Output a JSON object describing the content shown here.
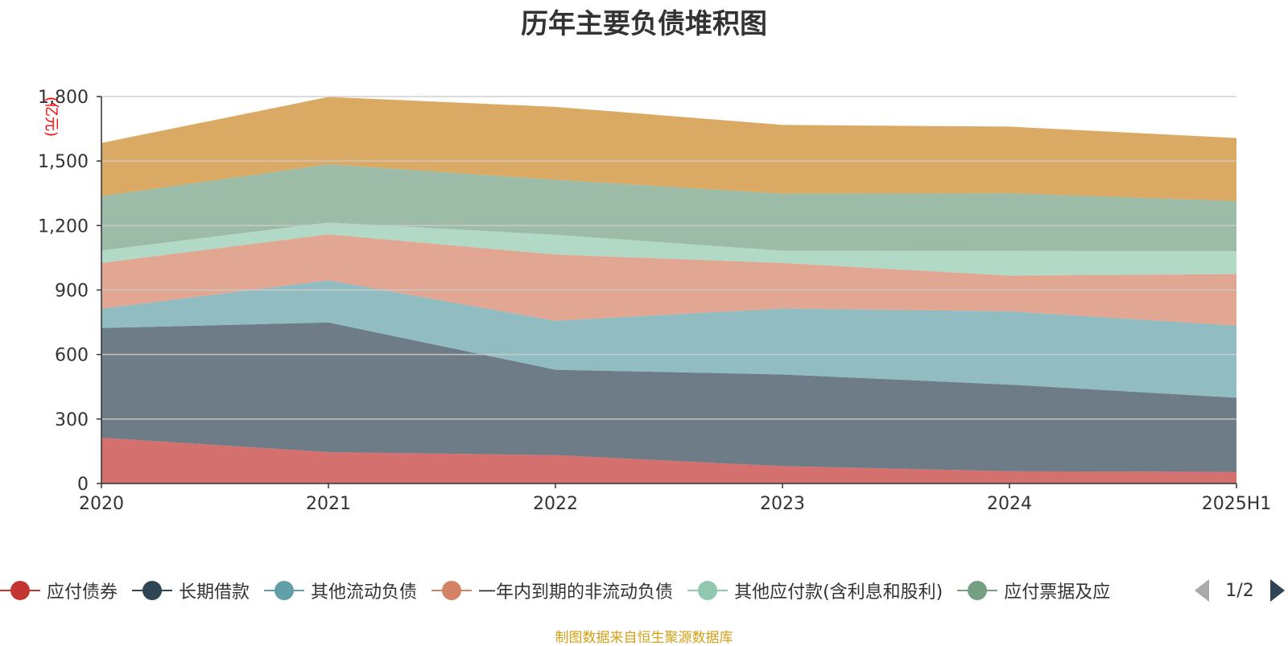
{
  "chart_data": {
    "type": "area",
    "stacked": true,
    "title": "历年主要负债堆积图",
    "ylabel": "(亿元)",
    "xlabel": "",
    "categories": [
      "2020",
      "2021",
      "2022",
      "2023",
      "2024",
      "2025H1"
    ],
    "ylim": [
      0,
      1800
    ],
    "yticks": [
      "0",
      "300",
      "600",
      "900",
      "1,200",
      "1,500",
      "1,800"
    ],
    "ytick_values": [
      0,
      300,
      600,
      900,
      1200,
      1500,
      1800
    ],
    "grid": true,
    "legend_position": "bottom",
    "series": [
      {
        "name": "应付债券",
        "color": "#c23531",
        "values": [
          213,
          146,
          132,
          81,
          57,
          54
        ]
      },
      {
        "name": "长期借款",
        "color": "#2f4554",
        "values": [
          510,
          603,
          397,
          426,
          403,
          345
        ]
      },
      {
        "name": "其他流动负债",
        "color": "#61a0a8",
        "values": [
          90,
          196,
          228,
          307,
          341,
          335
        ]
      },
      {
        "name": "一年内到期的非流动负债",
        "color": "#d48265",
        "values": [
          213,
          214,
          308,
          212,
          166,
          240
        ]
      },
      {
        "name": "其他应付款(含利息和股利)",
        "color": "#91c7ae",
        "values": [
          58,
          55,
          92,
          57,
          115,
          107
        ]
      },
      {
        "name": "应付票据及应付账款",
        "color": "#749f83",
        "values": [
          253,
          271,
          256,
          265,
          268,
          233
        ]
      },
      {
        "name": "",
        "color": "#ca8622",
        "values": [
          247,
          313,
          339,
          320,
          310,
          293
        ]
      }
    ]
  },
  "legend": {
    "items": [
      "应付债券",
      "长期借款",
      "其他流动负债",
      "一年内到期的非流动负债",
      "其他应付款(含利息和股利)",
      "应付票据及应"
    ],
    "page_text": "1/2"
  },
  "source_text": "制图数据来自恒生聚源数据库",
  "colors": {
    "axis": "#333333",
    "grid": "#cccccc",
    "unit_label": "#ff0000",
    "source": "#d4a017"
  }
}
